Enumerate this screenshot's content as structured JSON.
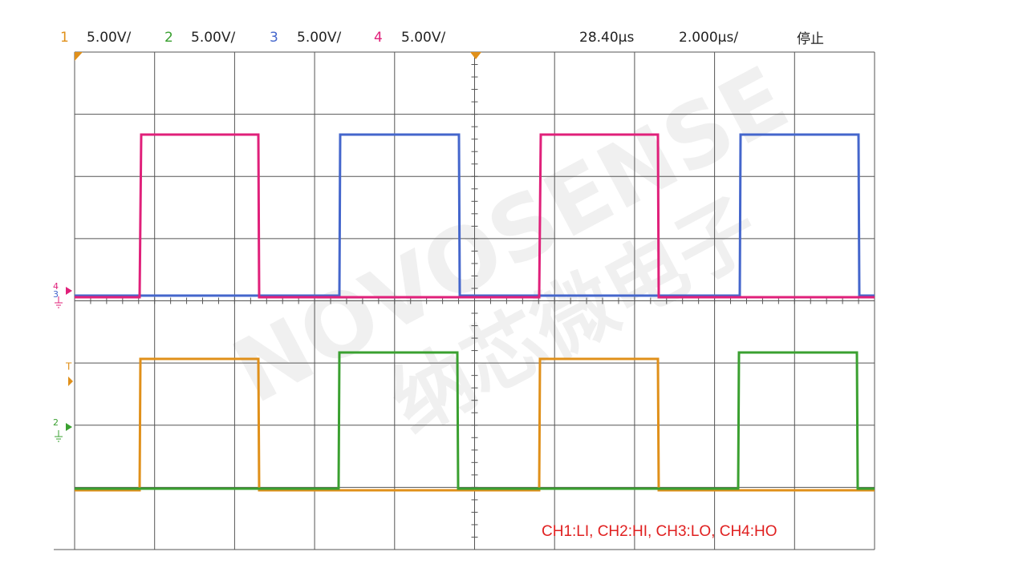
{
  "header": {
    "channels": [
      {
        "number": "1",
        "scale": "5.00V/"
      },
      {
        "number": "2",
        "scale": "5.00V/"
      },
      {
        "number": "3",
        "scale": "5.00V/"
      },
      {
        "number": "4",
        "scale": "5.00V/"
      }
    ],
    "time": "28.40µs",
    "timebase": "2.000µs/",
    "status": "停止"
  },
  "markers": {
    "ch4": "4",
    "ch3": "3",
    "trigger": "T",
    "ch2": "2"
  },
  "watermark": {
    "latin": "NOVOSENSE",
    "chinese": "纳芯微电子"
  },
  "annotation": "CH1:LI, CH2:HI, CH3:LO, CH4:HO"
}
